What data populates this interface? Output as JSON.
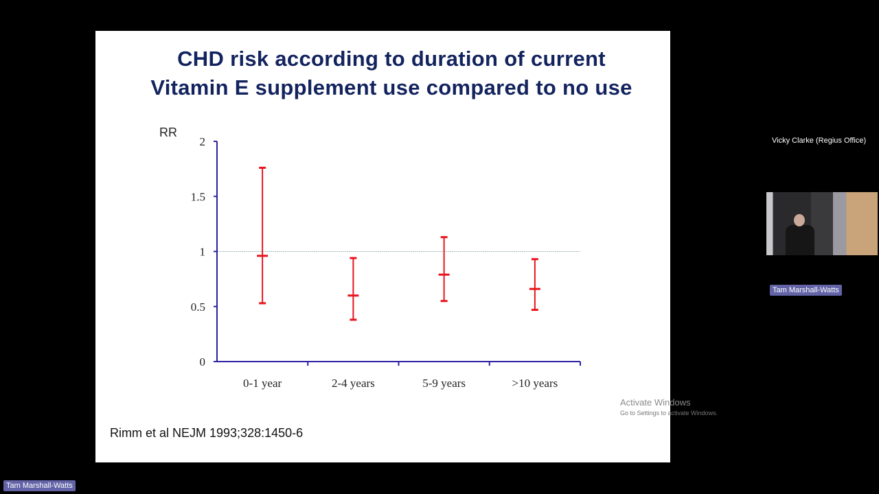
{
  "slide": {
    "title_line1": "CHD risk according to duration of current",
    "title_line2": "Vitamin E supplement use compared to no use",
    "citation": "Rimm et al NEJM 1993;328:1450-6"
  },
  "chart_data": {
    "type": "errorbar",
    "title": "CHD risk according to duration of current Vitamin E supplement use compared to no use",
    "ylabel": "RR",
    "xlabel": "",
    "ylim": [
      0,
      2
    ],
    "yticks": [
      "0",
      "0.5",
      "1",
      "1.5",
      "2"
    ],
    "reference_line": 1,
    "grid": false,
    "categories": [
      "0-1 year",
      "2-4 years",
      "5-9 years",
      ">10 years"
    ],
    "values": [
      0.96,
      0.6,
      0.79,
      0.66
    ],
    "lower": [
      0.53,
      0.38,
      0.55,
      0.47
    ],
    "upper": [
      1.76,
      0.94,
      1.13,
      0.93
    ],
    "colors": {
      "marks": "#e8141c",
      "axis": "#2a1fa0",
      "title": "#13235e"
    }
  },
  "watermark": {
    "line1": "Activate Windows",
    "line2": "Go to Settings to activate Windows."
  },
  "participants": {
    "remote_name": "Vicky Clarke (Regius Office)",
    "video_name": "Tam Marshall-Watts",
    "self_name": "Tam Marshall-Watts"
  }
}
